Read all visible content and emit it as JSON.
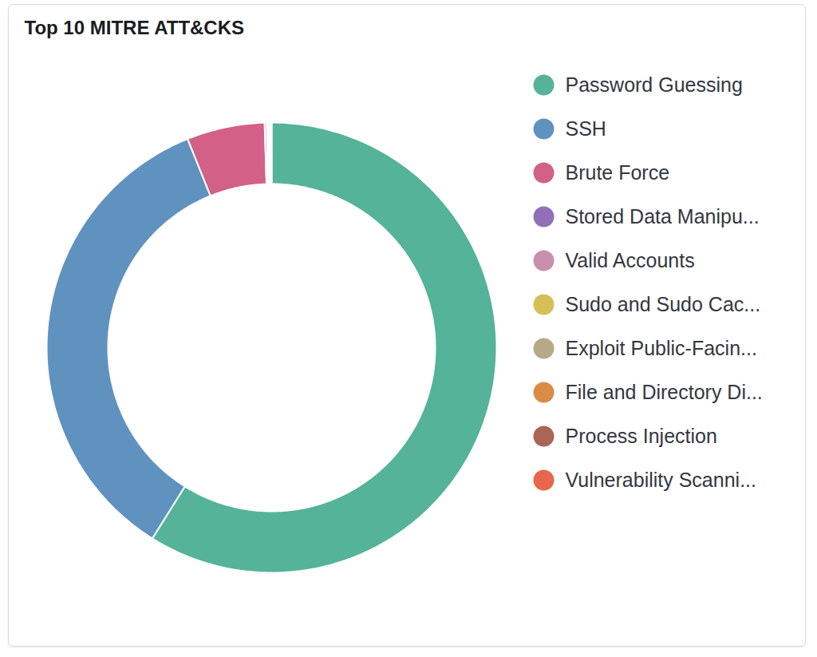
{
  "chart_data": {
    "type": "donut",
    "title": "Top 10 MITRE ATT&CKS",
    "categories": [
      "Password Guessing",
      "SSH",
      "Brute Force",
      "Stored Data Manipu...",
      "Valid Accounts",
      "Sudo and Sudo Cac...",
      "Exploit Public-Facin...",
      "File and Directory Di...",
      "Process Injection",
      "Vulnerability Scanni..."
    ],
    "values": [
      58.9,
      35.0,
      5.6,
      0.15,
      0.1,
      0.08,
      0.06,
      0.05,
      0.03,
      0.03
    ],
    "colors": [
      "#54b399",
      "#6092c0",
      "#d36086",
      "#9170b8",
      "#ca8eae",
      "#d6bf57",
      "#b9a888",
      "#da8b45",
      "#aa6556",
      "#e7664c"
    ],
    "legend": "right"
  }
}
